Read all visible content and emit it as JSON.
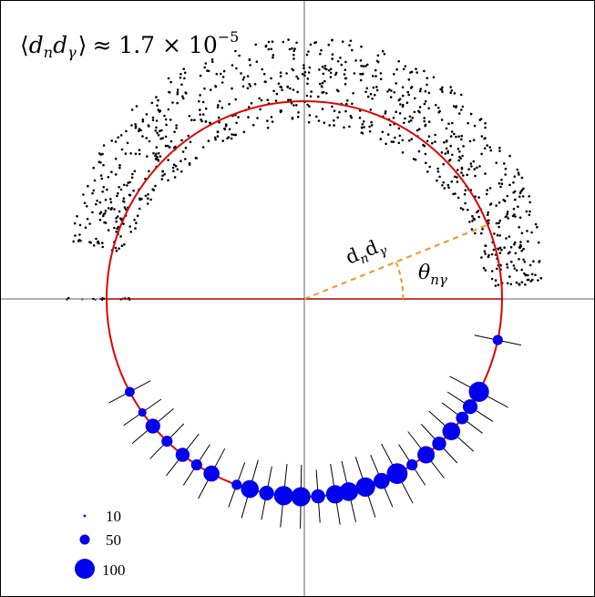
{
  "annotation": {
    "avg_left": "⟨",
    "avg_d1": "d",
    "avg_sub1": "n",
    "avg_d2": "d",
    "avg_sub2": "γ",
    "avg_right": "⟩",
    "approx": "≈ 1.7 × 10",
    "exponent": "−5"
  },
  "radius_label": {
    "base1": "d",
    "sub1": "n",
    "base2": "d",
    "sub2": "γ"
  },
  "angle_label": {
    "base": "θ",
    "sub": "nγ"
  },
  "legend": {
    "items": [
      {
        "label": "10",
        "size": 10
      },
      {
        "label": "50",
        "size": 50
      },
      {
        "label": "100",
        "size": 100
      }
    ]
  },
  "colors": {
    "circle": "#e00000",
    "points": "#000000",
    "bubbles": "#0000ee",
    "dashed_line": "#f7931e",
    "axes": "#555555"
  },
  "chart_data": {
    "type": "scatter",
    "description_units": "polar, radius normalized to unit circle",
    "circle_radius": 1.0,
    "radius_angle_deg": 22,
    "bubble_series": {
      "values": [
        {
          "theta_deg": -152,
          "size": 16
        },
        {
          "theta_deg": -145,
          "size": 10
        },
        {
          "theta_deg": -140,
          "size": 45
        },
        {
          "theta_deg": -134,
          "size": 22
        },
        {
          "theta_deg": -128,
          "size": 40
        },
        {
          "theta_deg": -123,
          "size": 22
        },
        {
          "theta_deg": -118,
          "size": 55
        },
        {
          "theta_deg": -110,
          "size": 18
        },
        {
          "theta_deg": -106,
          "size": 70
        },
        {
          "theta_deg": -101,
          "size": 45
        },
        {
          "theta_deg": -96,
          "size": 85
        },
        {
          "theta_deg": -91,
          "size": 85
        },
        {
          "theta_deg": -86,
          "size": 40
        },
        {
          "theta_deg": -81,
          "size": 75
        },
        {
          "theta_deg": -77,
          "size": 80
        },
        {
          "theta_deg": -72,
          "size": 85
        },
        {
          "theta_deg": -67,
          "size": 55
        },
        {
          "theta_deg": -62,
          "size": 100
        },
        {
          "theta_deg": -57,
          "size": 22
        },
        {
          "theta_deg": -52,
          "size": 65
        },
        {
          "theta_deg": -47,
          "size": 40
        },
        {
          "theta_deg": -42,
          "size": 70
        },
        {
          "theta_deg": -37,
          "size": 30
        },
        {
          "theta_deg": -33,
          "size": 45
        },
        {
          "theta_deg": -28,
          "size": 95
        },
        {
          "theta_deg": -12,
          "size": 18
        }
      ]
    }
  }
}
